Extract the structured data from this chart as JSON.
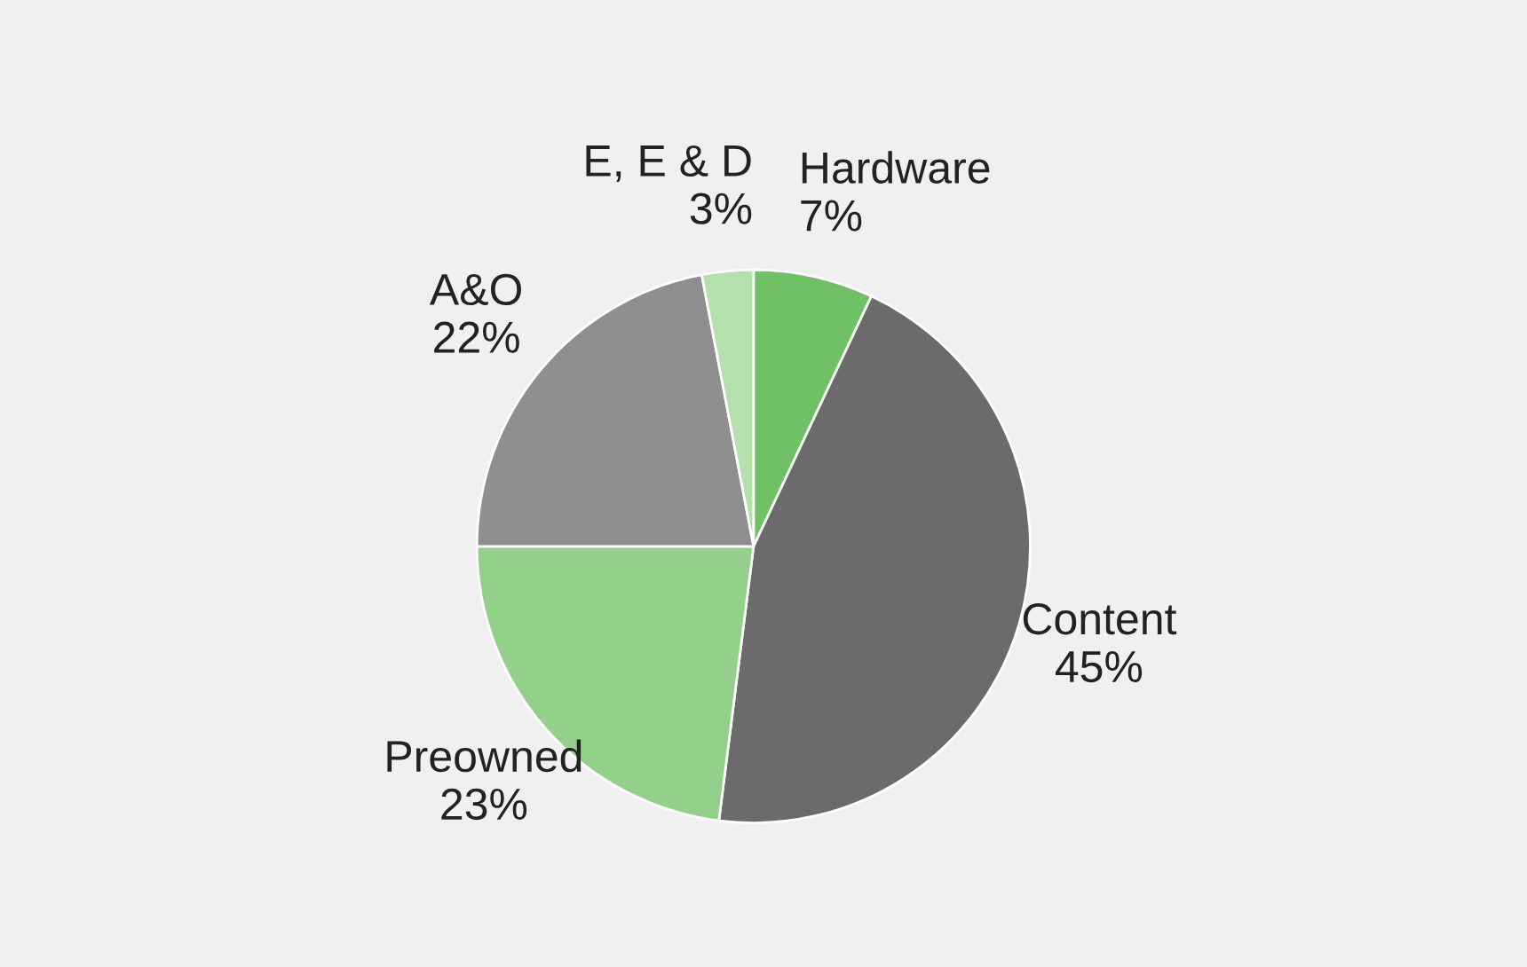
{
  "chart_data": {
    "type": "pie",
    "categories": [
      "Hardware",
      "Content",
      "Preowned",
      "A&O",
      "E, E & D"
    ],
    "values": [
      7,
      45,
      23,
      22,
      3
    ],
    "colors": [
      "#70c065",
      "#6b6b6b",
      "#93d18a",
      "#8f8f8f",
      "#b3e0ab"
    ],
    "value_labels": [
      "7%",
      "45%",
      "23%",
      "22%",
      "3%"
    ]
  }
}
